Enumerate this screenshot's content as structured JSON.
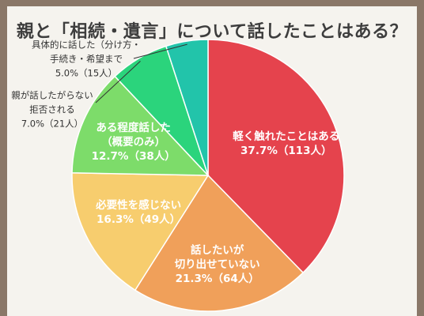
{
  "chart_data": {
    "type": "pie",
    "title": "親と「相続・遺言」について話したことはある？",
    "unit": "%",
    "slices": [
      {
        "name": "軽く触れたことはある",
        "value": 37.7,
        "count": "113人",
        "color": "#e5434d",
        "text_color": "#ffffff",
        "label_inside": true
      },
      {
        "name": "話したいが切り出せていない",
        "value": 21.3,
        "count": "64人",
        "color": "#f0a05a",
        "text_color": "#ffffff",
        "label_inside": true
      },
      {
        "name": "必要性を感じない",
        "value": 16.3,
        "count": "49人",
        "color": "#f7cd6e",
        "text_color": "#ffffff",
        "label_inside": true
      },
      {
        "name": "ある程度話した（概要のみ）",
        "value": 12.7,
        "count": "38人",
        "color": "#7ddc6a",
        "text_color": "#ffffff",
        "label_inside": true
      },
      {
        "name": "親が話したがらない・拒否される",
        "value": 7.0,
        "count": "21人",
        "color": "#2bd47c",
        "text_color": "#333333",
        "label_inside": false
      },
      {
        "name": "具体的に話した（分け方・手続き・希望まで）",
        "value": 5.0,
        "count": "15人",
        "color": "#22c4aa",
        "text_color": "#333333",
        "label_inside": false
      }
    ],
    "labels": [
      {
        "lines": [
          "軽く触れたことはある",
          "37.7%（113人）"
        ]
      },
      {
        "lines": [
          "話したいが",
          "切り出せていない",
          "21.3%（64人）"
        ]
      },
      {
        "lines": [
          "必要性を感じない",
          "16.3%（49人）"
        ]
      },
      {
        "lines": [
          "ある程度話した",
          "（概要のみ）",
          "12.7%（38人）"
        ]
      },
      {
        "lines": [
          "親が話したがらない",
          "拒否される",
          "7.0%（21人）"
        ]
      },
      {
        "lines": [
          "具体的に話した（分け方・",
          "手続き・希望まで",
          "5.0%（15人）"
        ]
      }
    ]
  }
}
